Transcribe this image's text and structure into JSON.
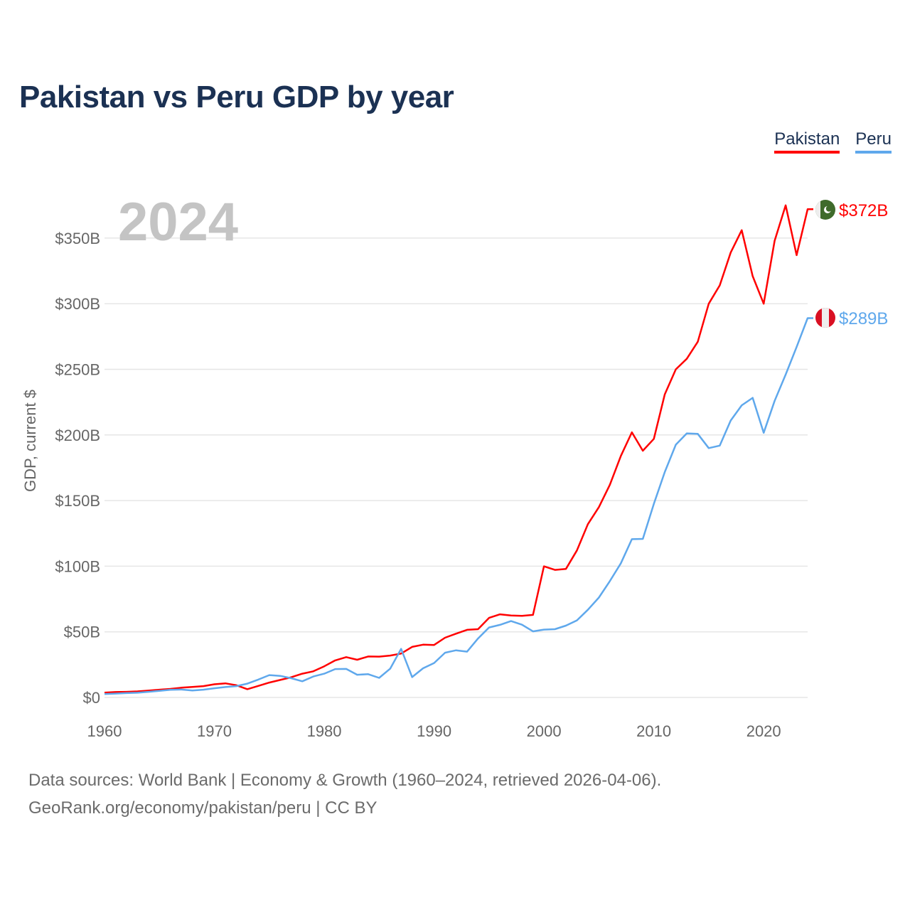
{
  "title": "Pakistan vs Peru GDP by year",
  "year_label": "2024",
  "footer": {
    "line1": "Data sources: World Bank | Economy & Growth (1960–2024, retrieved 2026-04-06).",
    "line2": "GeoRank.org/economy/pakistan/peru | CC BY"
  },
  "chart_data": {
    "type": "line",
    "title": "Pakistan vs Peru GDP by year",
    "xlabel": "",
    "ylabel": "GDP, current $",
    "xlim": [
      1960,
      2024
    ],
    "ylim": [
      0,
      370
    ],
    "grid": true,
    "legend_position": "top-right",
    "x_ticks": [
      1960,
      1970,
      1980,
      1990,
      2000,
      2010,
      2020
    ],
    "x_tick_labels": [
      "1960",
      "1970",
      "1980",
      "1990",
      "2000",
      "2010",
      "2020"
    ],
    "y_ticks": [
      0,
      50,
      100,
      150,
      200,
      250,
      300,
      350
    ],
    "y_tick_labels": [
      "$0",
      "$50B",
      "$100B",
      "$150B",
      "$200B",
      "$250B",
      "$300B",
      "$350B"
    ],
    "x_start": 1960,
    "series": [
      {
        "name": "Pakistan",
        "color": "#ff0000",
        "end_label": "$372B",
        "flag": "pakistan-flag",
        "values": [
          3.7,
          4.1,
          4.3,
          4.6,
          5.2,
          5.9,
          6.5,
          7.4,
          8.0,
          8.6,
          10.0,
          10.7,
          9.3,
          6.3,
          8.8,
          11.3,
          13.3,
          15.4,
          18.1,
          19.9,
          23.7,
          28.2,
          30.7,
          28.7,
          31.2,
          31.1,
          31.9,
          33.4,
          38.5,
          40.2,
          40.0,
          45.5,
          48.6,
          51.5,
          52.0,
          60.6,
          63.3,
          62.4,
          62.2,
          62.9,
          99.9,
          97.2,
          97.9,
          112,
          132,
          145,
          162,
          184,
          202,
          188,
          197,
          231,
          250,
          258,
          271,
          300,
          314,
          339,
          356,
          321,
          300,
          348,
          375,
          337,
          372
        ]
      },
      {
        "name": "Peru",
        "color": "#5fa8ec",
        "end_label": "$289B",
        "flag": "peru-flag",
        "values": [
          2.6,
          2.9,
          3.3,
          3.6,
          4.3,
          5.0,
          5.8,
          6.0,
          5.3,
          5.9,
          7.0,
          7.9,
          8.6,
          10.5,
          13.6,
          17.0,
          16.4,
          14.6,
          12.3,
          15.9,
          18.1,
          21.6,
          21.7,
          17.3,
          17.7,
          14.9,
          21.9,
          37.0,
          15.5,
          22.2,
          26.2,
          34.1,
          35.9,
          34.9,
          44.9,
          53.3,
          55.3,
          58.2,
          55.4,
          50.3,
          51.7,
          52.0,
          54.7,
          58.7,
          66.8,
          76.1,
          88.6,
          102.2,
          120.6,
          120.8,
          147.5,
          171.8,
          192.6,
          201.2,
          200.8,
          190.0,
          191.9,
          211.0,
          222.6,
          228.3,
          201.6,
          226.0,
          246.0,
          267.0,
          289
        ]
      }
    ]
  }
}
